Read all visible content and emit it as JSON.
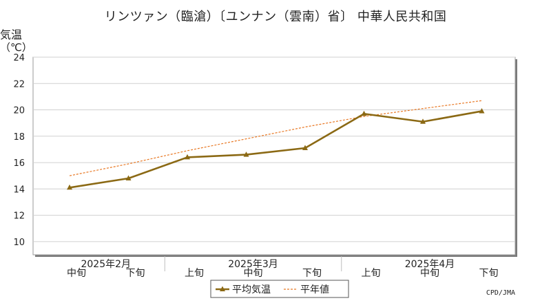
{
  "chart_data": {
    "type": "line",
    "title": "リンツァン（臨滄）〔ユンナン（雲南）省〕 中華人民共和国",
    "ylabel": "気温",
    "yunit": "（℃）",
    "ylim": [
      9,
      24
    ],
    "yticks": [
      10,
      12,
      14,
      16,
      18,
      20,
      22,
      24
    ],
    "grid": true,
    "x": [
      "中旬",
      "下旬",
      "上旬",
      "中旬",
      "下旬",
      "上旬",
      "中旬",
      "下旬"
    ],
    "month_labels": [
      {
        "label": "2025年2月",
        "center_index": 0.5
      },
      {
        "label": "2025年3月",
        "center_index": 3
      },
      {
        "label": "2025年4月",
        "center_index": 6
      }
    ],
    "series": [
      {
        "name": "平均気温",
        "style": "solid-marker",
        "color": "#8b6914",
        "values": [
          14.1,
          14.8,
          16.4,
          16.6,
          17.1,
          19.7,
          19.1,
          19.9
        ]
      },
      {
        "name": "平年値",
        "style": "dashed",
        "color": "#e87722",
        "values": [
          15.0,
          15.9,
          16.9,
          17.8,
          18.7,
          19.5,
          20.1,
          20.7
        ]
      }
    ],
    "legend_position": "bottom-center"
  },
  "credit": "CPD/JMA"
}
